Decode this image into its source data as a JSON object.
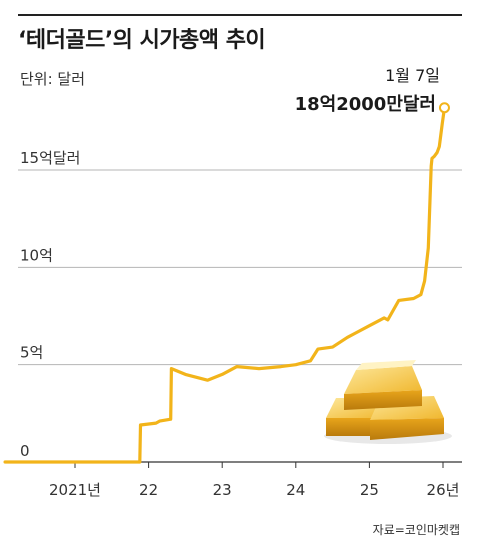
{
  "title": "‘테더골드’의 시가총액 추이",
  "unit_label": "단위: 달러",
  "source": "자료=코인마켓캡",
  "accent_color": "#f2b41a",
  "decoration": {
    "icon": "gold-bars-icon"
  },
  "chart_data": {
    "type": "line",
    "title": "‘테더골드’의 시가총액 추이",
    "ylabel": "단위: 달러",
    "ylim": [
      0,
      18.5
    ],
    "xlim": [
      2020.05,
      2026.2
    ],
    "grid": true,
    "y_ticks": [
      {
        "value": 0,
        "label": "0"
      },
      {
        "value": 5,
        "label": "5억"
      },
      {
        "value": 10,
        "label": "10억"
      },
      {
        "value": 15,
        "label": "15억달러"
      }
    ],
    "x_ticks": [
      {
        "value": 2021,
        "label": "2021년"
      },
      {
        "value": 2022,
        "label": "22"
      },
      {
        "value": 2023,
        "label": "23"
      },
      {
        "value": 2024,
        "label": "24"
      },
      {
        "value": 2025,
        "label": "25"
      },
      {
        "value": 2026,
        "label": "26년"
      }
    ],
    "series": [
      {
        "values_unit": "억 달러",
        "x": [
          2020.05,
          2020.5,
          2021.0,
          2021.4,
          2021.88,
          2021.89,
          2022.1,
          2022.15,
          2022.3,
          2022.31,
          2022.5,
          2022.8,
          2023.0,
          2023.2,
          2023.5,
          2023.8,
          2024.0,
          2024.2,
          2024.3,
          2024.5,
          2024.7,
          2024.8,
          2025.0,
          2025.2,
          2025.25,
          2025.4,
          2025.6,
          2025.7,
          2025.75,
          2025.8,
          2025.84,
          2025.85,
          2025.88,
          2025.92,
          2025.95,
          2025.97,
          2025.99,
          2026.02
        ],
        "values": [
          0,
          0,
          0,
          0,
          0,
          1.9,
          2.0,
          2.1,
          2.2,
          4.8,
          4.5,
          4.2,
          4.5,
          4.9,
          4.8,
          4.9,
          5.0,
          5.2,
          5.8,
          5.9,
          6.4,
          6.6,
          7.0,
          7.4,
          7.3,
          8.3,
          8.4,
          8.6,
          9.3,
          11.0,
          15.2,
          15.6,
          15.7,
          15.9,
          16.2,
          16.8,
          17.4,
          18.2
        ]
      }
    ],
    "annotation": {
      "date": "1월 7일",
      "value": "18억2000만달러",
      "x": 2026.02,
      "y": 18.2
    }
  }
}
